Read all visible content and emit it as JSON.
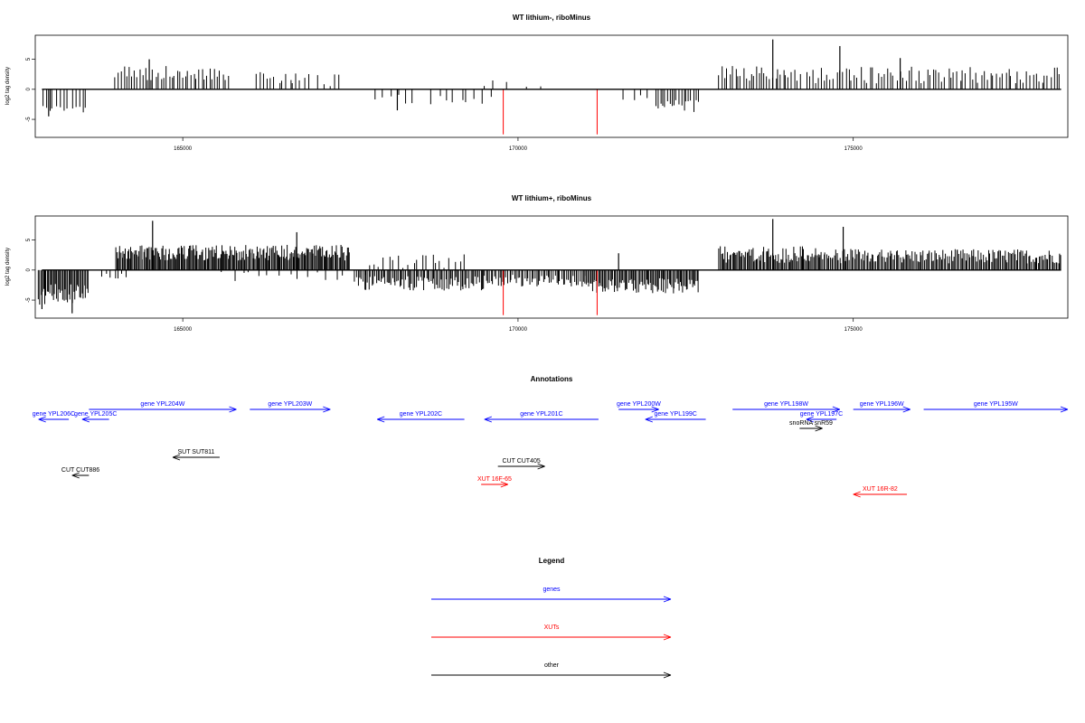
{
  "chart_data": [
    {
      "type": "bar",
      "title": "WT lithium-, riboMinus",
      "xlabel": "",
      "ylabel": "log2 tag density",
      "xlim": [
        162800,
        178200
      ],
      "ylim": [
        -8,
        9
      ],
      "xticks": [
        165000,
        170000,
        175000
      ],
      "yticks": [
        -5,
        0,
        5
      ],
      "grid": false,
      "bar_color": "#000000",
      "highlight_color": "#ff0000",
      "highlights": [
        {
          "x": 169780,
          "value": -7.5
        },
        {
          "x": 171180,
          "value": -7.5
        }
      ],
      "segments": [
        {
          "from": 162900,
          "to": 163600,
          "step": 55,
          "sign": -1,
          "base": 3.2,
          "var": 0.8
        },
        {
          "from": 164000,
          "to": 165700,
          "step": 40,
          "sign": 1,
          "base": 2.7,
          "var": 1.2
        },
        {
          "from": 166100,
          "to": 166900,
          "step": 55,
          "sign": 1,
          "base": 2.0,
          "var": 1.0
        },
        {
          "from": 167000,
          "to": 167400,
          "step": 90,
          "sign": 1,
          "base": 1.5,
          "var": 1.0
        },
        {
          "from": 167900,
          "to": 168500,
          "step": 110,
          "sign": -1,
          "base": 1.4,
          "var": 1.0
        },
        {
          "from": 168700,
          "to": 169600,
          "step": 110,
          "sign": -1,
          "base": 1.6,
          "var": 1.2
        },
        {
          "from": 169500,
          "to": 170300,
          "step": 200,
          "sign": 1,
          "base": 0.9,
          "var": 0.6
        },
        {
          "from": 171600,
          "to": 172000,
          "step": 110,
          "sign": -1,
          "base": 1.2,
          "var": 0.6
        },
        {
          "from": 172050,
          "to": 172700,
          "step": 35,
          "sign": -1,
          "base": 2.8,
          "var": 1.0
        },
        {
          "from": 173000,
          "to": 174200,
          "step": 40,
          "sign": 1,
          "base": 2.6,
          "var": 1.3
        },
        {
          "from": 174300,
          "to": 178100,
          "step": 45,
          "sign": 1,
          "base": 2.4,
          "var": 1.4
        }
      ],
      "peaks": [
        {
          "x": 163000,
          "value": -4.5
        },
        {
          "x": 164500,
          "value": 5.0
        },
        {
          "x": 173800,
          "value": 8.3
        },
        {
          "x": 174800,
          "value": 7.2
        },
        {
          "x": 175700,
          "value": 5.2
        },
        {
          "x": 168200,
          "value": -3.5
        }
      ]
    },
    {
      "type": "bar",
      "title": "WT lithium+, riboMinus",
      "xlabel": "",
      "ylabel": "log2 tag density",
      "xlim": [
        162800,
        178200
      ],
      "ylim": [
        -8,
        9
      ],
      "xticks": [
        165000,
        170000,
        175000
      ],
      "yticks": [
        -5,
        0,
        5
      ],
      "grid": false,
      "bar_color": "#000000",
      "highlight_color": "#ff0000",
      "highlights": [
        {
          "x": 169780,
          "value": -7.5
        },
        {
          "x": 171180,
          "value": -7.5
        }
      ],
      "segments": [
        {
          "from": 162850,
          "to": 163600,
          "step": 18,
          "sign": -1,
          "base": 4.0,
          "var": 1.8
        },
        {
          "from": 163800,
          "to": 164200,
          "step": 60,
          "sign": -1,
          "base": 1.2,
          "var": 0.8
        },
        {
          "from": 164000,
          "to": 167500,
          "step": 16,
          "sign": 1,
          "base": 2.9,
          "var": 1.3
        },
        {
          "from": 165600,
          "to": 167800,
          "step": 140,
          "sign": -1,
          "base": 1.2,
          "var": 0.9
        },
        {
          "from": 167600,
          "to": 169500,
          "step": 22,
          "sign": -1,
          "base": 2.2,
          "var": 1.2
        },
        {
          "from": 167800,
          "to": 169200,
          "step": 70,
          "sign": 1,
          "base": 1.5,
          "var": 1.2
        },
        {
          "from": 169500,
          "to": 171000,
          "step": 25,
          "sign": -1,
          "base": 1.8,
          "var": 1.0
        },
        {
          "from": 171000,
          "to": 172700,
          "step": 18,
          "sign": -1,
          "base": 2.6,
          "var": 1.3
        },
        {
          "from": 173000,
          "to": 174500,
          "step": 18,
          "sign": 1,
          "base": 2.6,
          "var": 1.4
        },
        {
          "from": 174500,
          "to": 178100,
          "step": 20,
          "sign": 1,
          "base": 2.3,
          "var": 1.2
        }
      ],
      "peaks": [
        {
          "x": 162900,
          "value": -6.5
        },
        {
          "x": 163350,
          "value": -7.2
        },
        {
          "x": 164550,
          "value": 8.2
        },
        {
          "x": 166700,
          "value": 6.3
        },
        {
          "x": 173800,
          "value": 8.5
        },
        {
          "x": 174850,
          "value": 7.2
        },
        {
          "x": 171500,
          "value": 2.8
        }
      ]
    }
  ],
  "annotations": {
    "title": "Annotations",
    "colors": {
      "genes": "#0000ff",
      "XUTs": "#ff0000",
      "other": "#000000"
    },
    "features": [
      {
        "label": "gene YPL206C",
        "type": "genes",
        "start": 163300,
        "end": 162850,
        "row": 1
      },
      {
        "label": "gene YPL205C",
        "type": "genes",
        "start": 163900,
        "end": 163500,
        "row": 1
      },
      {
        "label": "gene YPL204W",
        "type": "genes",
        "start": 163600,
        "end": 165800,
        "row": 0
      },
      {
        "label": "gene YPL203W",
        "type": "genes",
        "start": 166000,
        "end": 167200,
        "row": 0
      },
      {
        "label": "gene YPL202C",
        "type": "genes",
        "start": 169200,
        "end": 167900,
        "row": 1
      },
      {
        "label": "gene YPL201C",
        "type": "genes",
        "start": 171200,
        "end": 169500,
        "row": 1
      },
      {
        "label": "gene YPL200W",
        "type": "genes",
        "start": 171500,
        "end": 172100,
        "row": 0
      },
      {
        "label": "gene YPL199C",
        "type": "genes",
        "start": 172800,
        "end": 171900,
        "row": 1
      },
      {
        "label": "gene YPL198W",
        "type": "genes",
        "start": 173200,
        "end": 174800,
        "row": 0
      },
      {
        "label": "gene YPL197C",
        "type": "genes",
        "start": 174750,
        "end": 174300,
        "row": 1
      },
      {
        "label": "gene YPL196W",
        "type": "genes",
        "start": 175000,
        "end": 175850,
        "row": 0
      },
      {
        "label": "gene YPL195W",
        "type": "genes",
        "start": 176050,
        "end": 178200,
        "row": 0
      },
      {
        "label": "snoRNA snR59",
        "type": "other",
        "start": 174200,
        "end": 174540,
        "row": 2
      },
      {
        "label": "SUT SUT811",
        "type": "other",
        "start": 165550,
        "end": 164850,
        "row": 3
      },
      {
        "label": "CUT CUT405",
        "type": "other",
        "start": 169700,
        "end": 170400,
        "row": 4
      },
      {
        "label": "CUT CUT886",
        "type": "other",
        "start": 163600,
        "end": 163350,
        "row": 5
      },
      {
        "label": "XUT 16F-65",
        "type": "XUTs",
        "start": 169450,
        "end": 169850,
        "row": 6
      },
      {
        "label": "XUT 16R-82",
        "type": "XUTs",
        "start": 175800,
        "end": 175000,
        "row": 7
      }
    ]
  },
  "legend": {
    "title": "Legend",
    "items": [
      {
        "label": "genes",
        "color": "#0000ff"
      },
      {
        "label": "XUTs",
        "color": "#ff0000"
      },
      {
        "label": "other",
        "color": "#000000"
      }
    ]
  }
}
